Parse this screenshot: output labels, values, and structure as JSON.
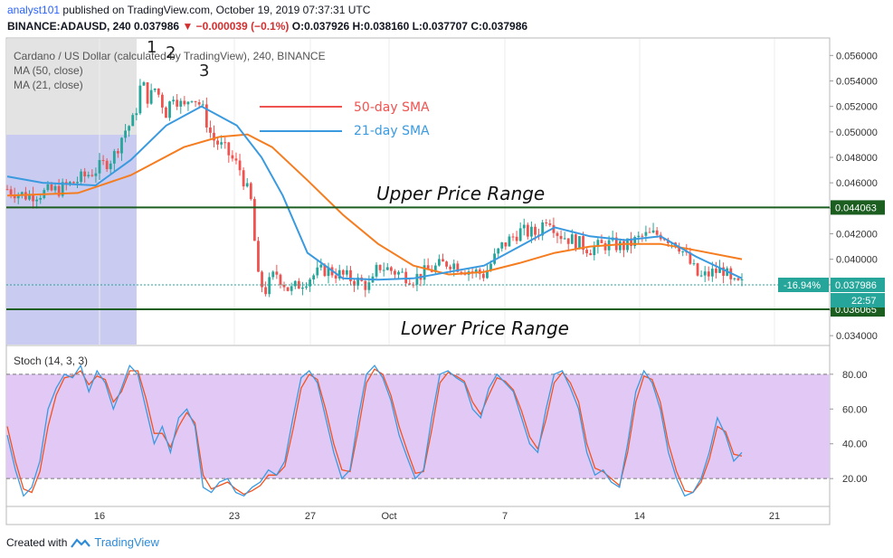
{
  "header": {
    "user": "analyst101",
    "published_text": "published on TradingView.com, October 19, 2019 07:37:31 UTC",
    "symbol_line_prefix": "BINANCE:ADAUSD, 240",
    "last_price": "0.037986",
    "change": "−0.000039 (−0.1%)",
    "open_label": "O:",
    "open": "0.037926",
    "high_label": "H:",
    "high": "0.038160",
    "low_label": "L:",
    "low": "0.037707",
    "close_label": "C:",
    "close": "0.037986"
  },
  "legend": {
    "title": "Cardano / US Dollar (calculated by TradingView), 240, BINANCE",
    "ma50": "MA (50, close)",
    "ma21": "MA (21, close)"
  },
  "annotations": {
    "wave_labels": [
      "1",
      "2",
      "3"
    ],
    "sma50_label": "50-day SMA",
    "sma21_label": "21-day SMA",
    "upper_range": "Upper Price Range",
    "lower_range": "Lower Price Range"
  },
  "colors": {
    "sma50": "#f57c1f",
    "sma21": "#3a9ae0",
    "range_line": "#1b5e20",
    "candle_up": "#26a69a",
    "candle_down": "#ef5350",
    "stoch_k": "#3a9ae0",
    "stoch_d": "#f4511e",
    "stoch_band": "#e2c8f5",
    "highlight_blue": "#c9cbf0",
    "highlight_gray": "#e3e3e3"
  },
  "chart_data": [
    {
      "type": "candlestick",
      "title": "Cardano / US Dollar (calculated by TradingView), 240, BINANCE",
      "x_ticks": [
        "16",
        "23",
        "27",
        "Oct",
        "7",
        "14",
        "21"
      ],
      "y_ticks": [
        "0.034000",
        "0.036000",
        "0.038000",
        "0.040000",
        "0.042000",
        "0.044000",
        "0.046000",
        "0.048000",
        "0.050000",
        "0.052000",
        "0.054000",
        "0.056000"
      ],
      "ylim": [
        0.0333,
        0.0573
      ],
      "price_tags": [
        {
          "label": "0.044063",
          "value": 0.044063,
          "kind": "level"
        },
        {
          "label": "0.037986",
          "value": 0.037986,
          "kind": "last"
        },
        {
          "label": "0.036065",
          "value": 0.036065,
          "kind": "level"
        }
      ],
      "change_pct": "-16.94%",
      "countdown": "22:57",
      "levels": [
        {
          "name": "Upper Price Range",
          "value": 0.044063
        },
        {
          "name": "Lower Price Range",
          "value": 0.036065
        }
      ],
      "close_path": [
        [
          0,
          0.0455
        ],
        [
          0.5,
          0.045
        ],
        [
          1,
          0.0452
        ],
        [
          1.5,
          0.0455
        ],
        [
          2,
          0.0462
        ],
        [
          2.5,
          0.047
        ],
        [
          3,
          0.048
        ],
        [
          3.3,
          0.05
        ],
        [
          3.6,
          0.051
        ],
        [
          3.8,
          0.054
        ],
        [
          4,
          0.0525
        ],
        [
          4.2,
          0.0535
        ],
        [
          4.5,
          0.0515
        ],
        [
          4.7,
          0.053
        ],
        [
          5,
          0.0518
        ],
        [
          5.2,
          0.053
        ],
        [
          5.5,
          0.052
        ],
        [
          5.8,
          0.0495
        ],
        [
          6.2,
          0.0485
        ],
        [
          6.6,
          0.047
        ],
        [
          6.9,
          0.0445
        ],
        [
          7.1,
          0.0385
        ],
        [
          7.3,
          0.0375
        ],
        [
          7.6,
          0.039
        ],
        [
          8,
          0.0375
        ],
        [
          8.5,
          0.0385
        ],
        [
          9,
          0.0392
        ],
        [
          9.5,
          0.0387
        ],
        [
          10,
          0.0382
        ],
        [
          10.3,
          0.0378
        ],
        [
          10.5,
          0.0395
        ],
        [
          11,
          0.039
        ],
        [
          11.5,
          0.0385
        ],
        [
          12,
          0.0392
        ],
        [
          12.5,
          0.0398
        ],
        [
          13,
          0.0392
        ],
        [
          13.5,
          0.0388
        ],
        [
          14,
          0.041
        ],
        [
          14.5,
          0.0422
        ],
        [
          15,
          0.042
        ],
        [
          15.3,
          0.0435
        ],
        [
          15.6,
          0.042
        ],
        [
          16,
          0.0415
        ],
        [
          16.5,
          0.0408
        ],
        [
          17,
          0.0412
        ],
        [
          17.5,
          0.041
        ],
        [
          18,
          0.0418
        ],
        [
          18.5,
          0.042
        ],
        [
          19,
          0.0412
        ],
        [
          19.3,
          0.0398
        ],
        [
          19.6,
          0.0385
        ],
        [
          20,
          0.039
        ],
        [
          20.3,
          0.0392
        ],
        [
          20.5,
          0.038
        ],
        [
          20.8,
          0.038
        ]
      ],
      "sma50": [
        [
          0,
          0.045
        ],
        [
          2,
          0.0452
        ],
        [
          3.5,
          0.0466
        ],
        [
          5,
          0.0488
        ],
        [
          6,
          0.0496
        ],
        [
          6.8,
          0.0498
        ],
        [
          7.5,
          0.0488
        ],
        [
          8.5,
          0.0462
        ],
        [
          9.5,
          0.0435
        ],
        [
          10.5,
          0.0412
        ],
        [
          11.5,
          0.0395
        ],
        [
          12.5,
          0.0388
        ],
        [
          13.5,
          0.039
        ],
        [
          14.5,
          0.0397
        ],
        [
          15.5,
          0.0405
        ],
        [
          16.5,
          0.041
        ],
        [
          17.5,
          0.0412
        ],
        [
          18.5,
          0.0412
        ],
        [
          19.5,
          0.0407
        ],
        [
          20.8,
          0.04
        ]
      ],
      "sma21": [
        [
          0,
          0.0465
        ],
        [
          1,
          0.046
        ],
        [
          2.5,
          0.0458
        ],
        [
          3.5,
          0.0478
        ],
        [
          4.5,
          0.0505
        ],
        [
          5.5,
          0.052
        ],
        [
          6.5,
          0.0505
        ],
        [
          7.2,
          0.048
        ],
        [
          7.8,
          0.045
        ],
        [
          8.5,
          0.0405
        ],
        [
          9.5,
          0.0385
        ],
        [
          10.5,
          0.0384
        ],
        [
          11.5,
          0.0385
        ],
        [
          12.5,
          0.039
        ],
        [
          13.5,
          0.0395
        ],
        [
          14.5,
          0.041
        ],
        [
          15.5,
          0.0425
        ],
        [
          16.5,
          0.0418
        ],
        [
          17.5,
          0.0415
        ],
        [
          18.5,
          0.0418
        ],
        [
          19.5,
          0.0402
        ],
        [
          20.8,
          0.0385
        ]
      ]
    },
    {
      "type": "line",
      "title": "Stoch (14, 3, 3)",
      "y_ticks": [
        "20.00",
        "40.00",
        "60.00",
        "80.00"
      ],
      "ylim": [
        5,
        95
      ],
      "bands": [
        20,
        80
      ],
      "series": [
        {
          "name": "%K",
          "values": [
            45,
            25,
            10,
            15,
            30,
            60,
            72,
            80,
            78,
            85,
            70,
            82,
            75,
            60,
            72,
            85,
            80,
            60,
            40,
            50,
            35,
            55,
            60,
            50,
            15,
            12,
            18,
            20,
            12,
            10,
            15,
            18,
            25,
            22,
            30,
            55,
            78,
            82,
            75,
            55,
            35,
            20,
            25,
            55,
            80,
            85,
            78,
            65,
            45,
            32,
            20,
            25,
            55,
            80,
            82,
            78,
            75,
            60,
            55,
            72,
            80,
            75,
            70,
            55,
            40,
            35,
            60,
            80,
            82,
            72,
            60,
            35,
            22,
            25,
            18,
            15,
            40,
            70,
            82,
            75,
            60,
            35,
            20,
            10,
            12,
            20,
            35,
            55,
            45,
            30,
            35
          ]
        },
        {
          "name": "%D",
          "values": [
            50,
            30,
            14,
            12,
            24,
            50,
            68,
            78,
            79,
            82,
            74,
            79,
            77,
            64,
            70,
            82,
            82,
            66,
            46,
            46,
            38,
            50,
            58,
            52,
            22,
            14,
            16,
            18,
            14,
            11,
            13,
            16,
            22,
            22,
            27,
            48,
            72,
            80,
            77,
            60,
            40,
            25,
            24,
            48,
            75,
            83,
            80,
            68,
            50,
            36,
            23,
            24,
            48,
            75,
            81,
            79,
            76,
            64,
            57,
            68,
            78,
            76,
            71,
            59,
            44,
            37,
            54,
            75,
            81,
            75,
            64,
            40,
            26,
            24,
            20,
            16,
            35,
            64,
            79,
            77,
            64,
            40,
            24,
            13,
            12,
            18,
            31,
            50,
            47,
            34,
            33
          ]
        }
      ],
      "x_ticks": [
        "16",
        "23",
        "27",
        "Oct",
        "7",
        "14",
        "21"
      ]
    }
  ],
  "footer": {
    "created_with": "Created with",
    "brand": "TradingView"
  }
}
